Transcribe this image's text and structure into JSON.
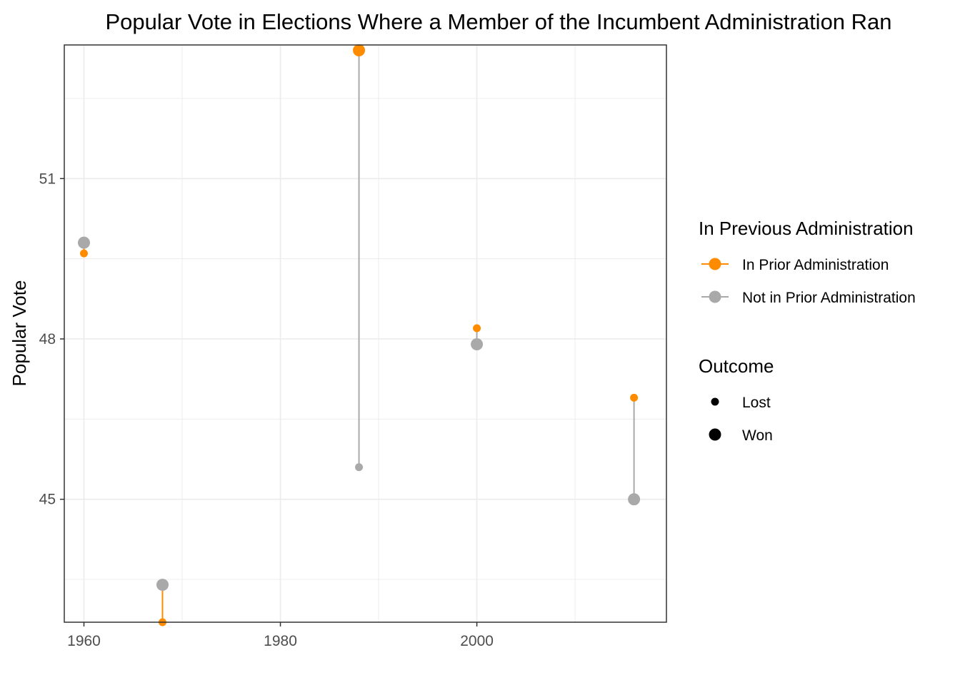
{
  "chart_data": {
    "type": "scatter",
    "title": "Popular Vote in Elections Where a Member of the Incumbent Administration Ran",
    "xlabel": "",
    "ylabel": "Popular Vote",
    "xlim": [
      1958,
      2019.3
    ],
    "ylim": [
      42.7,
      53.5
    ],
    "x_ticks": [
      1960,
      1980,
      2000
    ],
    "y_ticks": [
      45,
      48,
      51
    ],
    "grid": true,
    "colors": {
      "prior": "#ff8c00",
      "not_prior": "#a9a9a9"
    },
    "elections": [
      {
        "year": 1960,
        "prior": {
          "vote": 49.6,
          "outcome": "Lost"
        },
        "not_prior": {
          "vote": 49.8,
          "outcome": "Won"
        }
      },
      {
        "year": 1968,
        "prior": {
          "vote": 42.7,
          "outcome": "Lost"
        },
        "not_prior": {
          "vote": 43.4,
          "outcome": "Won"
        }
      },
      {
        "year": 1988,
        "prior": {
          "vote": 53.4,
          "outcome": "Won"
        },
        "not_prior": {
          "vote": 45.6,
          "outcome": "Lost"
        }
      },
      {
        "year": 2000,
        "prior": {
          "vote": 48.2,
          "outcome": "Lost"
        },
        "not_prior": {
          "vote": 47.9,
          "outcome": "Won"
        }
      },
      {
        "year": 2016,
        "prior": {
          "vote": 46.9,
          "outcome": "Lost"
        },
        "not_prior": {
          "vote": 45.0,
          "outcome": "Won"
        }
      }
    ],
    "legend": {
      "placement": "right",
      "color_title": "In Previous Administration",
      "color_items": [
        {
          "key": "prior",
          "label": "In Prior Administration"
        },
        {
          "key": "not_prior",
          "label": "Not in Prior Administration"
        }
      ],
      "size_title": "Outcome",
      "size_items": [
        {
          "key": "Lost",
          "label": "Lost"
        },
        {
          "key": "Won",
          "label": "Won"
        }
      ]
    }
  }
}
